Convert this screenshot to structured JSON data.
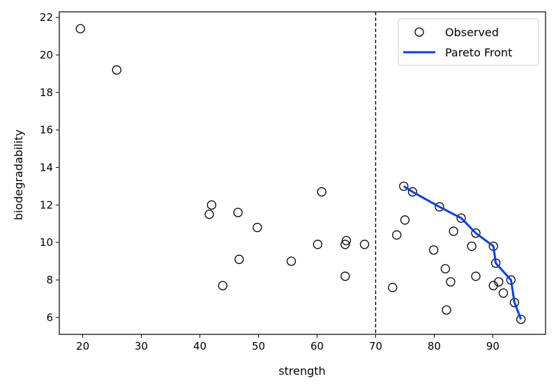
{
  "chart_data": {
    "type": "scatter",
    "xlabel": "strength",
    "ylabel": "biodegradability",
    "xlim": [
      16,
      99
    ],
    "ylim": [
      5.1,
      22.3
    ],
    "x_ticks": [
      20,
      30,
      40,
      50,
      60,
      70,
      80,
      90
    ],
    "y_ticks": [
      6,
      8,
      10,
      12,
      14,
      16,
      18,
      20,
      22
    ],
    "grid": false,
    "legend_position": "top-right",
    "threshold_line": {
      "x": 70,
      "style": "dashed",
      "color": "#000000"
    },
    "series": [
      {
        "name": "Observed",
        "kind": "scatter",
        "marker": "open-circle",
        "color": "#000000",
        "points": [
          [
            19.6,
            21.4
          ],
          [
            25.8,
            19.2
          ],
          [
            41.6,
            11.5
          ],
          [
            42.0,
            12.0
          ],
          [
            43.9,
            7.7
          ],
          [
            46.5,
            11.6
          ],
          [
            46.7,
            9.1
          ],
          [
            49.8,
            10.8
          ],
          [
            55.6,
            9.0
          ],
          [
            60.1,
            9.9
          ],
          [
            60.8,
            12.7
          ],
          [
            64.8,
            9.9
          ],
          [
            65.0,
            10.1
          ],
          [
            64.8,
            8.2
          ],
          [
            68.1,
            9.9
          ],
          [
            72.9,
            7.6
          ],
          [
            73.6,
            10.4
          ],
          [
            74.8,
            13.0
          ],
          [
            75.0,
            11.2
          ],
          [
            76.3,
            12.7
          ],
          [
            79.9,
            9.6
          ],
          [
            80.9,
            11.9
          ],
          [
            81.9,
            8.6
          ],
          [
            82.1,
            6.4
          ],
          [
            82.8,
            7.9
          ],
          [
            83.3,
            10.6
          ],
          [
            84.6,
            11.3
          ],
          [
            86.4,
            9.8
          ],
          [
            87.1,
            10.5
          ],
          [
            87.1,
            8.2
          ],
          [
            90.1,
            9.8
          ],
          [
            90.1,
            7.7
          ],
          [
            90.5,
            8.9
          ],
          [
            91.0,
            7.9
          ],
          [
            91.8,
            7.3
          ],
          [
            93.1,
            8.0
          ],
          [
            93.7,
            6.8
          ],
          [
            94.8,
            5.9
          ]
        ]
      },
      {
        "name": "Pareto Front",
        "kind": "line",
        "color": "#0a3cf0",
        "points": [
          [
            74.8,
            13.0
          ],
          [
            76.3,
            12.7
          ],
          [
            80.9,
            11.9
          ],
          [
            84.6,
            11.3
          ],
          [
            87.1,
            10.5
          ],
          [
            90.1,
            9.8
          ],
          [
            90.5,
            8.9
          ],
          [
            93.1,
            8.0
          ],
          [
            93.7,
            6.8
          ],
          [
            94.8,
            5.9
          ]
        ]
      }
    ]
  }
}
